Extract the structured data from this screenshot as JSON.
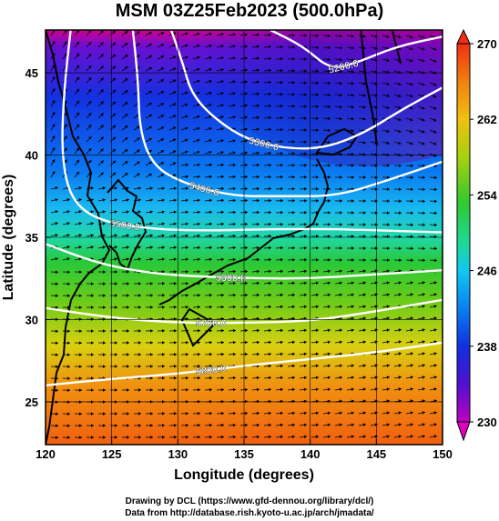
{
  "title": "MSM 03Z25Feb2023 (500.0hPa)",
  "xlabel": "Longitude (degrees)",
  "ylabel": "Latitude  (degrees)",
  "footer": {
    "line1": "Drawing by DCL (https://www.gfd-dennou.org/library/dcl/)",
    "line2": "Data from http://database.rish.kyoto-u.ac.jp/arch/jmadata/"
  },
  "chart_data": {
    "type": "heatmap",
    "title": "MSM 03Z25Feb2023 (500.0hPa)",
    "xlabel": "Longitude (degrees)",
    "ylabel": "Latitude  (degrees)",
    "xlim": [
      120,
      150
    ],
    "ylim": [
      22.4,
      47.6
    ],
    "x_ticks": [
      120,
      125,
      130,
      135,
      140,
      145,
      150
    ],
    "y_ticks": [
      25,
      30,
      35,
      40,
      45
    ],
    "colorbar": {
      "range": [
        230,
        270
      ],
      "ticks": [
        230,
        238,
        246,
        254,
        262,
        270
      ],
      "extend": "both"
    },
    "contours": [
      {
        "label": "5200.0",
        "points": [
          [
            137.0,
            47.6
          ],
          [
            139.5,
            46.6
          ],
          [
            141.5,
            45.2
          ],
          [
            143.5,
            45.6
          ],
          [
            146.5,
            46.6
          ],
          [
            150.0,
            47.2
          ]
        ]
      },
      {
        "label": "5300.0",
        "points": [
          [
            129.5,
            47.6
          ],
          [
            130.4,
            45.5
          ],
          [
            131.0,
            43.8
          ],
          [
            132.5,
            42.4
          ],
          [
            135.0,
            41.0
          ],
          [
            138.0,
            40.4
          ],
          [
            141.0,
            40.4
          ],
          [
            144.0,
            41.3
          ],
          [
            147.0,
            42.8
          ],
          [
            150.0,
            44.1
          ]
        ]
      },
      {
        "label": "5400.0",
        "points": [
          [
            126.6,
            47.6
          ],
          [
            127.0,
            44.5
          ],
          [
            127.1,
            41.6
          ],
          [
            128.0,
            39.5
          ],
          [
            130.0,
            38.4
          ],
          [
            134.0,
            37.5
          ],
          [
            138.0,
            37.5
          ],
          [
            142.0,
            37.5
          ],
          [
            146.0,
            38.5
          ],
          [
            150.0,
            39.6
          ]
        ]
      },
      {
        "label": "5500.0",
        "points": [
          [
            121.9,
            47.6
          ],
          [
            121.4,
            44.0
          ],
          [
            121.2,
            40.0
          ],
          [
            121.9,
            37.3
          ],
          [
            124.0,
            36.0
          ],
          [
            128.0,
            35.5
          ],
          [
            132.0,
            35.4
          ],
          [
            137.0,
            35.5
          ],
          [
            142.0,
            35.5
          ],
          [
            146.0,
            35.4
          ],
          [
            150.0,
            35.3
          ]
        ]
      },
      {
        "label": "5600.0",
        "points": [
          [
            120.0,
            34.6
          ],
          [
            124.0,
            33.4
          ],
          [
            128.0,
            32.8
          ],
          [
            132.0,
            32.6
          ],
          [
            136.0,
            32.5
          ],
          [
            140.0,
            32.5
          ],
          [
            144.0,
            32.7
          ],
          [
            150.0,
            33.0
          ]
        ]
      },
      {
        "label": "5700.0",
        "points": [
          [
            120.0,
            30.7
          ],
          [
            125.0,
            30.1
          ],
          [
            130.0,
            29.8
          ],
          [
            135.0,
            29.8
          ],
          [
            140.0,
            29.9
          ],
          [
            145.0,
            30.5
          ],
          [
            150.0,
            31.2
          ]
        ]
      },
      {
        "label": "5800.0",
        "points": [
          [
            120.0,
            26.0
          ],
          [
            125.0,
            26.4
          ],
          [
            130.0,
            26.7
          ],
          [
            135.0,
            27.2
          ],
          [
            140.0,
            27.6
          ],
          [
            145.0,
            28.0
          ],
          [
            150.0,
            28.6
          ]
        ]
      }
    ],
    "legend": "colorbar right"
  }
}
